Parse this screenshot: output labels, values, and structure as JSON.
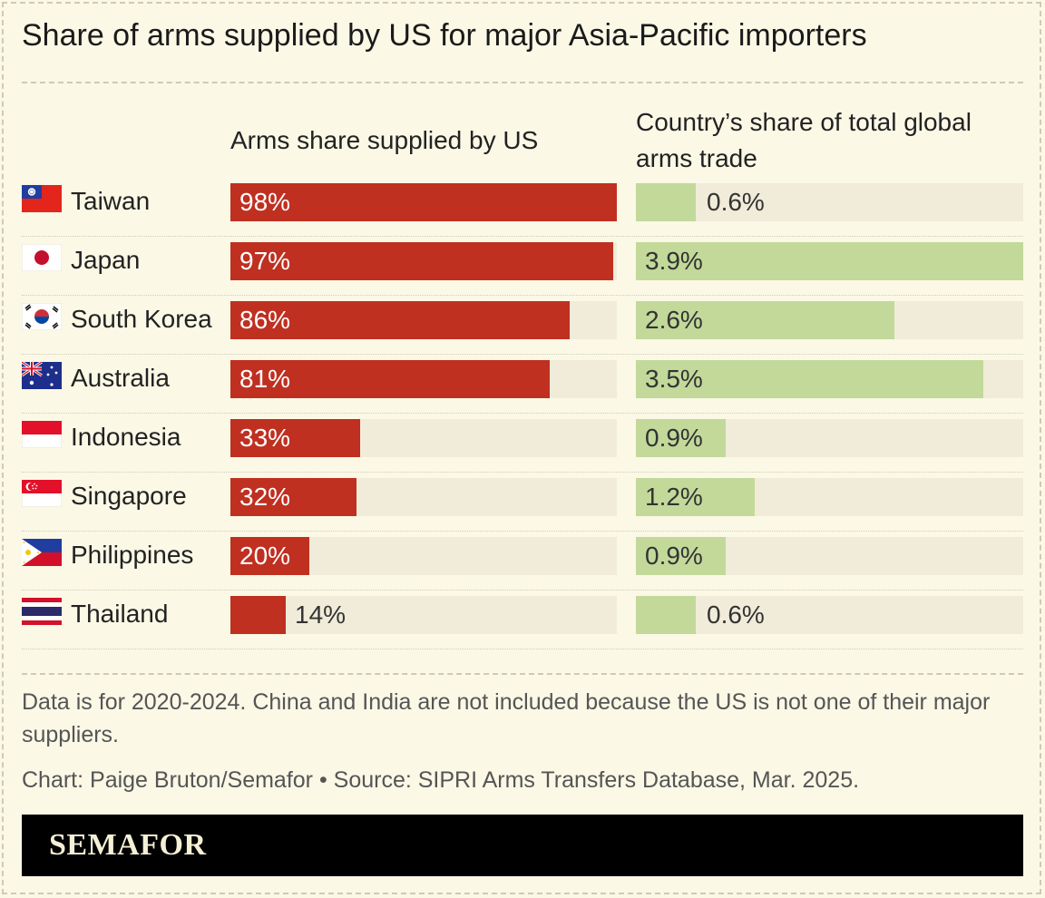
{
  "title": "Share of arms supplied by US for major Asia-Pacific importers",
  "chart_data": {
    "type": "bar",
    "categories": [
      "Taiwan",
      "Japan",
      "South Korea",
      "Australia",
      "Indonesia",
      "Singapore",
      "Philippines",
      "Thailand"
    ],
    "series": [
      {
        "name": "Arms share supplied by US",
        "values": [
          98,
          97,
          86,
          81,
          33,
          32,
          20,
          14
        ],
        "labels": [
          "98%",
          "97%",
          "86%",
          "81%",
          "33%",
          "32%",
          "20%",
          "14%"
        ],
        "max": 98
      },
      {
        "name": "Country’s share of total global arms trade",
        "values": [
          0.6,
          3.9,
          2.6,
          3.5,
          0.9,
          1.2,
          0.9,
          0.6
        ],
        "labels": [
          "0.6%",
          "3.9%",
          "2.6%",
          "3.5%",
          "0.9%",
          "1.2%",
          "0.9%",
          "0.6%"
        ],
        "max": 3.9
      }
    ],
    "flags": [
      "taiwan-flag-icon",
      "japan-flag-icon",
      "south-korea-flag-icon",
      "australia-flag-icon",
      "indonesia-flag-icon",
      "singapore-flag-icon",
      "philippines-flag-icon",
      "thailand-flag-icon"
    ],
    "colors": {
      "us": "#bf3021",
      "global": "#c2d99a",
      "track": "#f0ecd9"
    }
  },
  "footnote": "Data is for 2020-2024. China and India are not included because the US is not one of their major suppliers.",
  "credit": "Chart: Paige Bruton/Semafor • Source: SIPRI Arms Transfers Database, Mar. 2025.",
  "brand": "SEMAFOR"
}
